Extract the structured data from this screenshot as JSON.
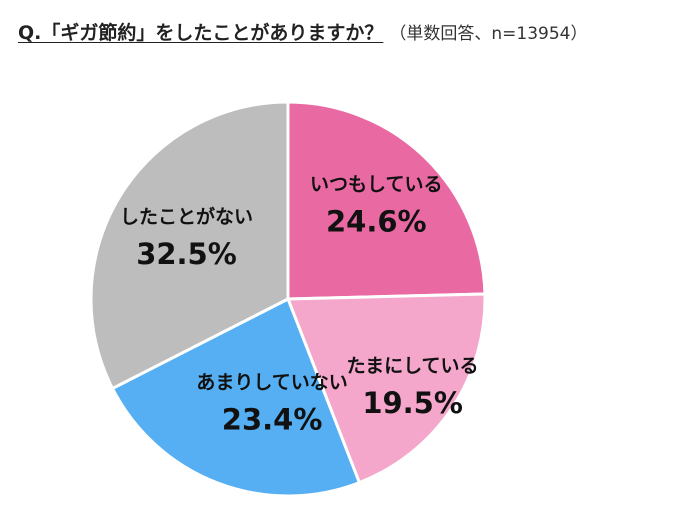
{
  "title": {
    "question": "Q.「ギガ節約」をしたことがありますか？",
    "note": "（単数回答、n=13954）"
  },
  "colors": {
    "slice_1": "#e96aa3",
    "slice_2": "#f4a6cb",
    "slice_3": "#55aff2",
    "slice_4": "#bdbdbd",
    "slice_stroke": "#ffffff"
  },
  "chart_data": {
    "type": "pie",
    "title": "Q.「ギガ節約」をしたことがありますか？（単数回答、n=13954）",
    "categories": [
      "いつもしている",
      "たまにしている",
      "あまりしていない",
      "したことがない"
    ],
    "values": [
      24.6,
      19.5,
      23.4,
      32.5
    ],
    "value_labels": [
      "24.6%",
      "19.5%",
      "23.4%",
      "32.5%"
    ],
    "unit": "%",
    "start_angle": "12 o'clock",
    "direction": "clockwise",
    "legend": "none",
    "labels_position": "inside"
  }
}
